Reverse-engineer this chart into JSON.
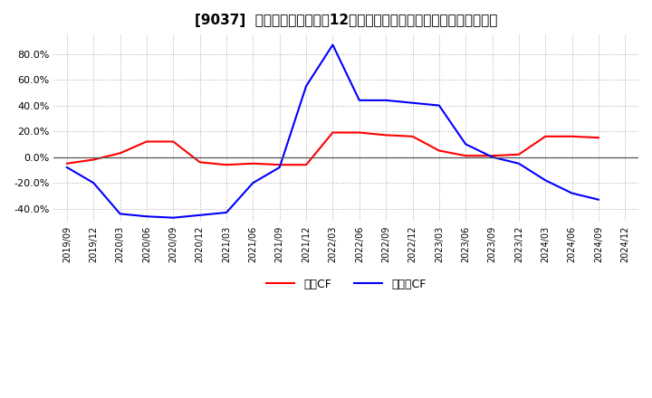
{
  "title": "[9037]  キャッシュフローの12か月移動合計の対前年同期増減率の推移",
  "legend_labels": [
    "営業CF",
    "フリーCF"
  ],
  "colors": [
    "red",
    "blue"
  ],
  "x_labels": [
    "2019/09",
    "2019/12",
    "2020/03",
    "2020/06",
    "2020/09",
    "2020/12",
    "2021/03",
    "2021/06",
    "2021/09",
    "2021/12",
    "2022/03",
    "2022/06",
    "2022/09",
    "2022/12",
    "2023/03",
    "2023/06",
    "2023/09",
    "2023/12",
    "2024/03",
    "2024/06",
    "2024/09",
    "2024/12"
  ],
  "eigyo_cf": [
    -5.0,
    -2.0,
    3.0,
    12.0,
    12.0,
    -4.0,
    -6.0,
    -5.0,
    -6.0,
    -6.0,
    19.0,
    19.0,
    17.0,
    16.0,
    5.0,
    1.0,
    1.0,
    2.0,
    16.0,
    16.0,
    15.0,
    null
  ],
  "free_cf": [
    -8.0,
    -20.0,
    -44.0,
    -46.0,
    -47.0,
    -45.0,
    -43.0,
    -20.0,
    -8.0,
    55.0,
    87.0,
    44.0,
    44.0,
    42.0,
    40.0,
    10.0,
    0.0,
    -5.0,
    -18.0,
    -28.0,
    -33.0,
    null
  ],
  "ylim": [
    -50,
    95
  ],
  "yticks": [
    -40.0,
    -20.0,
    0.0,
    20.0,
    40.0,
    60.0,
    80.0
  ],
  "background_color": "#ffffff",
  "grid_color": "#aaaaaa",
  "title_fontsize": 11
}
